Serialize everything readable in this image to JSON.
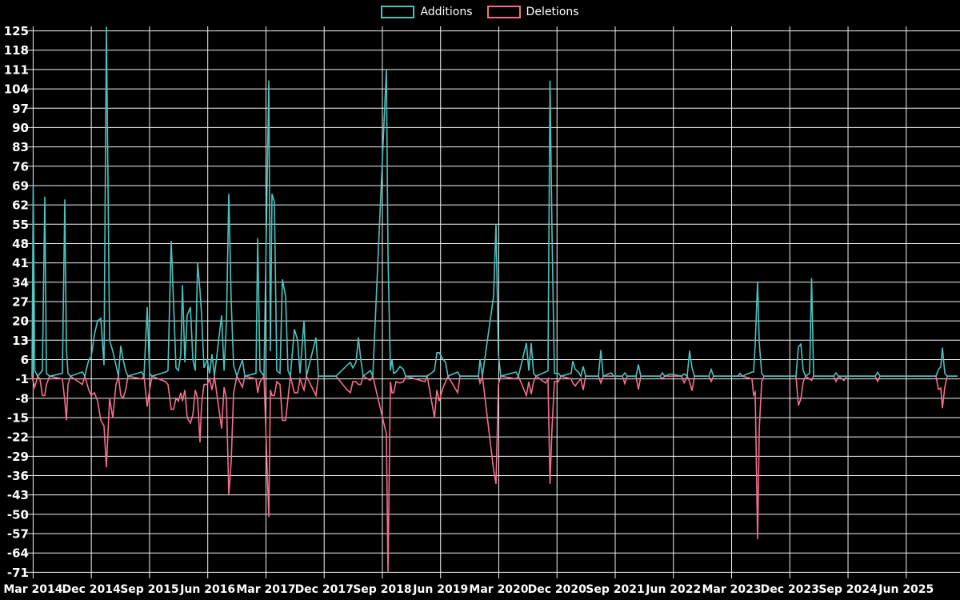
{
  "chart_data": {
    "type": "line",
    "title": "",
    "legend": [
      {
        "label": "Additions",
        "color": "#4cc2be"
      },
      {
        "label": "Deletions",
        "color": "#f56e8c"
      }
    ],
    "background_color": "#000000",
    "grid_color": "#f2f2f2",
    "text_color": "#ffffff",
    "grid": true,
    "legend_position": "top-center",
    "x_axis": {
      "tick_labels": [
        "Mar 2014",
        "Dec 2014",
        "Sep 2015",
        "Jun 2016",
        "Mar 2017",
        "Dec 2017",
        "Sep 2018",
        "Jun 2019",
        "Mar 2020",
        "Dec 2020",
        "Sep 2021",
        "Jun 2022",
        "Mar 2023",
        "Dec 2023",
        "Sep 2024",
        "Jun 2025"
      ],
      "start_year_decimal": 2014.17,
      "tick_interval_years": 0.75
    },
    "y_axis": {
      "min": -71,
      "max": 125,
      "step": 7,
      "tick_labels": [
        "125",
        "118",
        "111",
        "104",
        "97",
        "90",
        "83",
        "76",
        "69",
        "62",
        "55",
        "48",
        "41",
        "34",
        "27",
        "20",
        "13",
        "6",
        "-1",
        "-8",
        "-15",
        "-22",
        "-29",
        "-36",
        "-43",
        "-50",
        "-57",
        "-64",
        "-71"
      ]
    },
    "series_names": [
      "Additions",
      "Deletions"
    ],
    "points_format": [
      "year_decimal",
      "additions",
      "deletions"
    ],
    "points": [
      [
        2014.156,
        0,
        0
      ],
      [
        2014.171,
        69,
        -2
      ],
      [
        2014.192,
        2,
        -4
      ],
      [
        2014.228,
        0,
        0
      ],
      [
        2014.259,
        1,
        -1
      ],
      [
        2014.29,
        2,
        -7
      ],
      [
        2014.32,
        65,
        -7
      ],
      [
        2014.341,
        1,
        -3
      ],
      [
        2014.382,
        0,
        0
      ],
      [
        2014.547,
        1,
        -1
      ],
      [
        2014.578,
        64,
        -9
      ],
      [
        2014.599,
        10,
        -16
      ],
      [
        2014.619,
        1,
        -3
      ],
      [
        2014.65,
        0,
        0
      ],
      [
        2014.805,
        1.5,
        -3
      ],
      [
        2014.836,
        0,
        0
      ],
      [
        2014.887,
        6,
        -5
      ],
      [
        2014.918,
        7,
        -7
      ],
      [
        2014.96,
        15,
        -6
      ],
      [
        2015.001,
        20,
        -9
      ],
      [
        2015.042,
        21,
        -16
      ],
      [
        2015.083,
        4,
        -18
      ],
      [
        2015.114,
        126.5,
        -33
      ],
      [
        2015.155,
        13,
        -8
      ],
      [
        2015.197,
        9,
        -15
      ],
      [
        2015.238,
        4,
        -3
      ],
      [
        2015.269,
        0,
        0
      ],
      [
        2015.3,
        11,
        -7
      ],
      [
        2015.331,
        6,
        -8
      ],
      [
        2015.362,
        2,
        -5
      ],
      [
        2015.392,
        0,
        0
      ],
      [
        2015.568,
        1.5,
        -1
      ],
      [
        2015.599,
        0,
        0
      ],
      [
        2015.64,
        25,
        -11
      ],
      [
        2015.671,
        1,
        -5
      ],
      [
        2015.702,
        0,
        0
      ],
      [
        2015.877,
        1.5,
        -2
      ],
      [
        2015.908,
        2,
        -3
      ],
      [
        2015.949,
        49,
        -12
      ],
      [
        2015.98,
        26,
        -12
      ],
      [
        2016.011,
        3,
        -8
      ],
      [
        2016.042,
        2,
        -9
      ],
      [
        2016.073,
        8,
        -6
      ],
      [
        2016.094,
        33,
        -9
      ],
      [
        2016.125,
        5,
        -5
      ],
      [
        2016.155,
        22,
        -15
      ],
      [
        2016.197,
        25,
        -17
      ],
      [
        2016.228,
        6,
        -14
      ],
      [
        2016.259,
        2,
        -5
      ],
      [
        2016.289,
        41,
        -8
      ],
      [
        2016.32,
        31,
        -24
      ],
      [
        2016.341,
        22,
        -10
      ],
      [
        2016.372,
        3,
        -3
      ],
      [
        2016.413,
        6,
        -3
      ],
      [
        2016.444,
        1,
        -1
      ],
      [
        2016.475,
        8,
        -5
      ],
      [
        2016.506,
        0,
        0
      ],
      [
        2016.599,
        22,
        -19
      ],
      [
        2016.63,
        2,
        -4
      ],
      [
        2016.661,
        20,
        -8
      ],
      [
        2016.691,
        66,
        -43
      ],
      [
        2016.722,
        27,
        -31
      ],
      [
        2016.753,
        4,
        -6
      ],
      [
        2016.795,
        0,
        0
      ],
      [
        2016.867,
        6,
        -4
      ],
      [
        2016.898,
        0,
        0
      ],
      [
        2017.042,
        1,
        -1
      ],
      [
        2017.063,
        50,
        -6
      ],
      [
        2017.093,
        2,
        -2
      ],
      [
        2017.145,
        0,
        0
      ],
      [
        2017.207,
        107,
        -51
      ],
      [
        2017.227,
        9,
        -5
      ],
      [
        2017.248,
        66,
        -7
      ],
      [
        2017.279,
        63,
        -7
      ],
      [
        2017.31,
        2,
        -2
      ],
      [
        2017.351,
        1,
        -3
      ],
      [
        2017.382,
        35,
        -16
      ],
      [
        2017.423,
        29,
        -16
      ],
      [
        2017.454,
        2,
        -8
      ],
      [
        2017.485,
        0,
        0
      ],
      [
        2017.537,
        17,
        -6
      ],
      [
        2017.578,
        13,
        -6
      ],
      [
        2017.609,
        1,
        -1
      ],
      [
        2017.66,
        20,
        -5
      ],
      [
        2017.691,
        0,
        0
      ],
      [
        2017.815,
        14,
        -7
      ],
      [
        2017.846,
        0,
        0
      ],
      [
        2018.073,
        0,
        0
      ],
      [
        2018.217,
        4,
        -5
      ],
      [
        2018.258,
        5,
        -6
      ],
      [
        2018.289,
        3,
        -2
      ],
      [
        2018.33,
        5,
        -2
      ],
      [
        2018.361,
        14,
        -3
      ],
      [
        2018.392,
        6,
        -3
      ],
      [
        2018.423,
        0,
        0
      ],
      [
        2018.516,
        2,
        -1.5
      ],
      [
        2018.547,
        0,
        0
      ],
      [
        2018.722,
        111,
        -21
      ],
      [
        2018.743,
        44,
        -71
      ],
      [
        2018.774,
        2,
        -2
      ],
      [
        2018.794,
        6,
        -6
      ],
      [
        2018.815,
        1,
        -6
      ],
      [
        2018.846,
        1.5,
        -2
      ],
      [
        2018.897,
        3.5,
        -2.5
      ],
      [
        2018.939,
        2.5,
        -2
      ],
      [
        2018.969,
        0,
        0
      ],
      [
        2019.217,
        0,
        -2
      ],
      [
        2019.248,
        0,
        0
      ],
      [
        2019.341,
        2,
        -15
      ],
      [
        2019.372,
        8.5,
        -5
      ],
      [
        2019.402,
        8.5,
        -9
      ],
      [
        2019.454,
        6,
        -4
      ],
      [
        2019.485,
        5,
        -2
      ],
      [
        2019.516,
        0,
        0
      ],
      [
        2019.64,
        1.5,
        -6
      ],
      [
        2019.67,
        0,
        0
      ],
      [
        2019.908,
        0,
        0
      ],
      [
        2019.928,
        6,
        -2.5
      ],
      [
        2019.959,
        0,
        0
      ],
      [
        2020.103,
        29,
        -34
      ],
      [
        2020.134,
        55,
        -39
      ],
      [
        2020.165,
        8,
        -3
      ],
      [
        2020.196,
        0,
        0
      ],
      [
        2020.392,
        1.5,
        -1
      ],
      [
        2020.423,
        0,
        0
      ],
      [
        2020.526,
        12,
        -7
      ],
      [
        2020.557,
        2,
        -2
      ],
      [
        2020.588,
        12,
        -6.5
      ],
      [
        2020.619,
        1,
        -2
      ],
      [
        2020.65,
        0,
        0
      ],
      [
        2020.773,
        1.5,
        -2.5
      ],
      [
        2020.804,
        2,
        -1
      ],
      [
        2020.83,
        107,
        -39
      ],
      [
        2020.856,
        52,
        -19
      ],
      [
        2020.887,
        1,
        -2
      ],
      [
        2020.938,
        1,
        -2
      ],
      [
        2020.969,
        0,
        0
      ],
      [
        2021.103,
        1,
        -1
      ],
      [
        2021.124,
        5.5,
        -2.5
      ],
      [
        2021.155,
        2.5,
        -3.5
      ],
      [
        2021.196,
        1.5,
        -2
      ],
      [
        2021.227,
        0,
        -1
      ],
      [
        2021.258,
        3.5,
        -5
      ],
      [
        2021.289,
        0,
        0
      ],
      [
        2021.454,
        0,
        0
      ],
      [
        2021.485,
        9.5,
        -2.5
      ],
      [
        2021.515,
        0,
        0
      ],
      [
        2021.619,
        1.2,
        0
      ],
      [
        2021.649,
        0,
        0
      ],
      [
        2021.763,
        0,
        0
      ],
      [
        2021.794,
        1.2,
        -2.7
      ],
      [
        2021.825,
        0,
        0
      ],
      [
        2021.938,
        0,
        0
      ],
      [
        2021.969,
        4.2,
        -4.8
      ],
      [
        2022.0,
        0,
        0
      ],
      [
        2022.247,
        0,
        0
      ],
      [
        2022.278,
        1.2,
        -1
      ],
      [
        2022.309,
        0,
        0
      ],
      [
        2022.381,
        0.8,
        0
      ],
      [
        2022.526,
        0,
        0
      ],
      [
        2022.557,
        0.8,
        -2.4
      ],
      [
        2022.598,
        0,
        0
      ],
      [
        2022.629,
        9.2,
        -2
      ],
      [
        2022.66,
        3,
        -5.3
      ],
      [
        2022.691,
        0,
        0
      ],
      [
        2022.876,
        0,
        0
      ],
      [
        2022.907,
        2.4,
        -1.9
      ],
      [
        2022.938,
        0,
        0
      ],
      [
        2023.247,
        0,
        0
      ],
      [
        2023.278,
        1,
        0
      ],
      [
        2023.309,
        0,
        0
      ],
      [
        2023.433,
        1.5,
        -1
      ],
      [
        2023.453,
        1.5,
        -6.8
      ],
      [
        2023.474,
        11.6,
        -5.8
      ],
      [
        2023.505,
        34.3,
        -59
      ],
      [
        2023.526,
        12,
        -19
      ],
      [
        2023.557,
        1,
        -2
      ],
      [
        2023.587,
        0,
        0
      ],
      [
        2024.0,
        0,
        0
      ],
      [
        2024.031,
        10.6,
        -10.6
      ],
      [
        2024.062,
        11.6,
        -8.2
      ],
      [
        2024.092,
        2,
        -2
      ],
      [
        2024.123,
        0,
        0
      ],
      [
        2024.175,
        1,
        -1
      ],
      [
        2024.201,
        35.5,
        -1.5
      ],
      [
        2024.226,
        0,
        0
      ],
      [
        2024.484,
        0,
        0
      ],
      [
        2024.515,
        1.2,
        -1.9
      ],
      [
        2024.546,
        0,
        0
      ],
      [
        2024.618,
        0,
        -1.6
      ],
      [
        2024.649,
        0,
        0
      ],
      [
        2025.02,
        0,
        0
      ],
      [
        2025.051,
        1.4,
        -1.9
      ],
      [
        2025.082,
        0,
        0
      ],
      [
        2025.803,
        0,
        0
      ],
      [
        2025.834,
        2.4,
        -4.8
      ],
      [
        2025.865,
        3.4,
        -4.3
      ],
      [
        2025.886,
        10.3,
        -11.6
      ],
      [
        2025.917,
        1,
        -4
      ],
      [
        2025.948,
        0,
        0
      ],
      [
        2026.082,
        0,
        0
      ]
    ]
  }
}
